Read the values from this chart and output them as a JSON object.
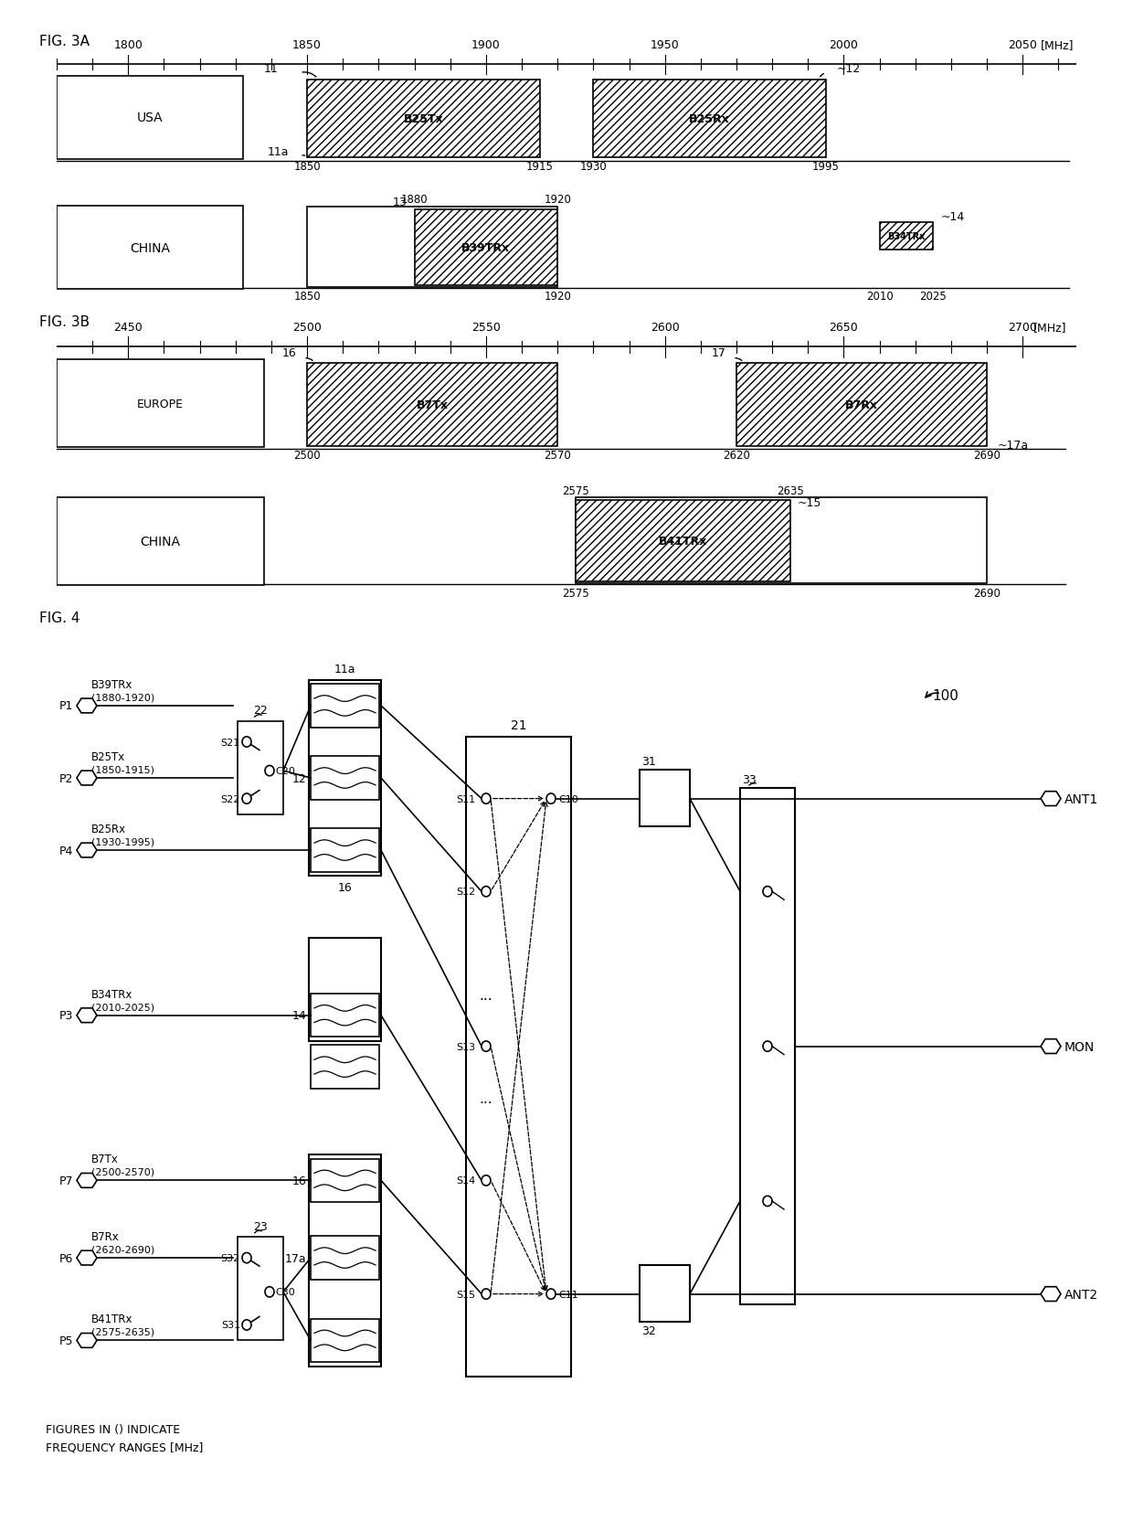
{
  "bg": "#ffffff",
  "fig3a_label": "FIG. 3A",
  "fig3b_label": "FIG. 3B",
  "fig4_label": "FIG. 4",
  "fig3a_ticks": [
    1800,
    1850,
    1900,
    1950,
    2000,
    2050
  ],
  "fig3b_ticks": [
    2450,
    2500,
    2550,
    2600,
    2650,
    2700
  ],
  "bottom_note": "FIGURES IN () INDICATE\nFREQUENCY RANGES [MHz]"
}
